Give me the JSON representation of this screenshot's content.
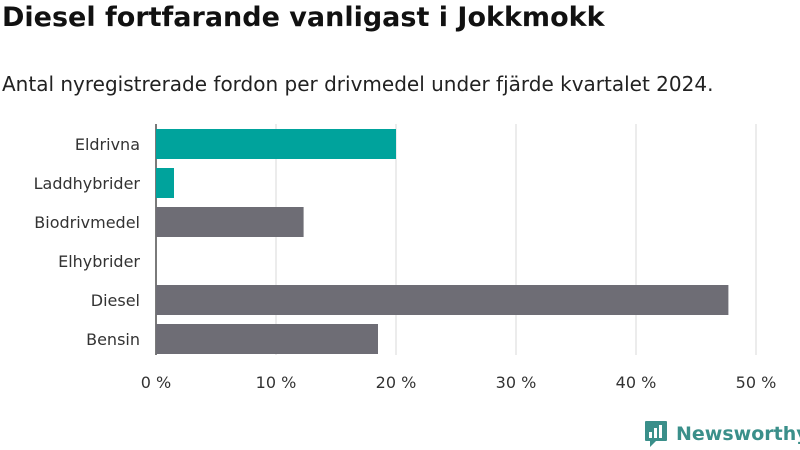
{
  "header": {
    "title": "Diesel fortfarande vanligast i Jokkmokk",
    "subtitle": "Antal nyregistrerade fordon per drivmedel under fjärde kvartalet 2024."
  },
  "chart_data": {
    "type": "bar",
    "orientation": "horizontal",
    "categories": [
      "Eldrivna",
      "Laddhybrider",
      "Biodrivmedel",
      "Elhybrider",
      "Diesel",
      "Bensin"
    ],
    "values": [
      20.0,
      1.5,
      12.3,
      0,
      47.7,
      18.5
    ],
    "value_unit": "%",
    "xlim": [
      0,
      50
    ],
    "xticks": [
      0,
      10,
      20,
      30,
      40,
      50
    ],
    "xtick_labels": [
      "0 %",
      "10 %",
      "20 %",
      "30 %",
      "40 %",
      "50 %"
    ],
    "grid": true,
    "bar_colors": [
      "#00a39c",
      "#00a39c",
      "#6e6d75",
      "#6e6d75",
      "#6e6d75",
      "#6e6d75"
    ]
  },
  "brand": {
    "label": "Newsworthy",
    "icon": "newsworthy-logo-icon",
    "color": "#3a8f8a"
  }
}
